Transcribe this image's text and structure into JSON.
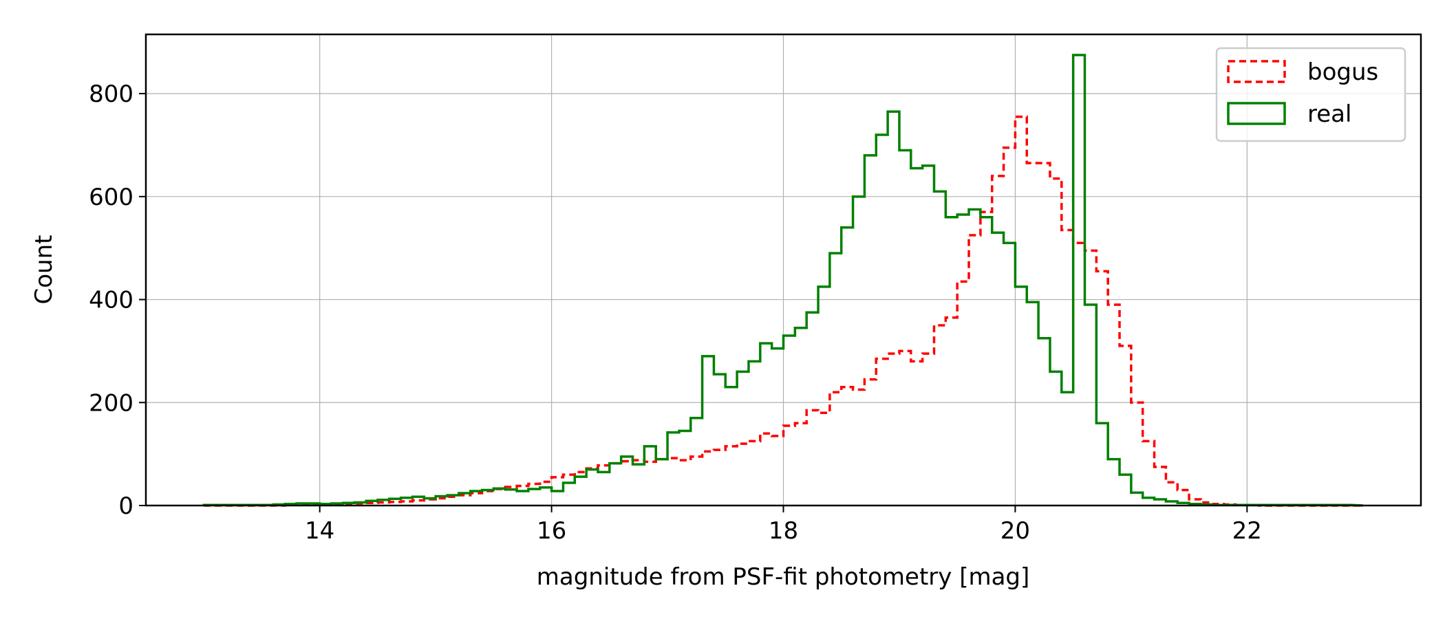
{
  "chart_data": {
    "type": "histogram-step",
    "xlabel": "magnitude from PSF-fit photometry [mag]",
    "ylabel": "Count",
    "xlim": [
      12.5,
      23.5
    ],
    "ylim": [
      0,
      915
    ],
    "x_ticks": [
      14,
      16,
      18,
      20,
      22
    ],
    "y_ticks": [
      0,
      200,
      400,
      600,
      800
    ],
    "grid": true,
    "legend_position": "top-right",
    "series": [
      {
        "name": "bogus",
        "color": "#ff0000",
        "line_style": "dashed",
        "bin_edges": [
          13.0,
          13.1,
          13.2,
          13.3,
          13.4,
          13.5,
          13.6,
          13.7,
          13.8,
          13.9,
          14.0,
          14.1,
          14.2,
          14.3,
          14.4,
          14.5,
          14.6,
          14.7,
          14.8,
          14.9,
          15.0,
          15.1,
          15.2,
          15.3,
          15.4,
          15.5,
          15.6,
          15.7,
          15.8,
          15.9,
          16.0,
          16.1,
          16.2,
          16.3,
          16.4,
          16.5,
          16.6,
          16.7,
          16.8,
          16.9,
          17.0,
          17.1,
          17.2,
          17.3,
          17.4,
          17.5,
          17.6,
          17.7,
          17.8,
          17.9,
          18.0,
          18.1,
          18.2,
          18.3,
          18.4,
          18.5,
          18.6,
          18.7,
          18.8,
          18.9,
          19.0,
          19.1,
          19.2,
          19.3,
          19.4,
          19.5,
          19.6,
          19.7,
          19.8,
          19.9,
          20.0,
          20.1,
          20.2,
          20.3,
          20.4,
          20.5,
          20.6,
          20.7,
          20.8,
          20.9,
          21.0,
          21.1,
          21.2,
          21.3,
          21.4,
          21.5,
          21.6,
          21.7,
          21.8,
          21.9,
          22.0,
          22.1,
          22.2,
          22.3,
          22.4,
          22.5,
          22.6,
          22.7,
          22.8,
          22.9
        ],
        "counts": [
          0,
          0,
          0,
          0,
          0,
          0,
          0,
          1,
          1,
          2,
          2,
          3,
          3,
          4,
          5,
          6,
          7,
          8,
          10,
          12,
          14,
          17,
          20,
          24,
          28,
          32,
          36,
          38,
          42,
          46,
          55,
          60,
          65,
          72,
          78,
          82,
          86,
          88,
          85,
          90,
          92,
          88,
          95,
          105,
          108,
          115,
          120,
          125,
          140,
          135,
          155,
          160,
          185,
          180,
          220,
          230,
          225,
          245,
          285,
          295,
          300,
          280,
          295,
          350,
          365,
          435,
          525,
          570,
          640,
          695,
          755,
          665,
          665,
          635,
          535,
          510,
          495,
          455,
          390,
          310,
          200,
          125,
          75,
          45,
          30,
          12,
          6,
          3,
          2,
          1,
          1,
          0,
          0,
          0,
          0,
          0,
          0,
          0,
          0
        ]
      },
      {
        "name": "real",
        "color": "#008000",
        "line_style": "solid",
        "bin_edges": [
          13.0,
          13.1,
          13.2,
          13.3,
          13.4,
          13.5,
          13.6,
          13.7,
          13.8,
          13.9,
          14.0,
          14.1,
          14.2,
          14.3,
          14.4,
          14.5,
          14.6,
          14.7,
          14.8,
          14.9,
          15.0,
          15.1,
          15.2,
          15.3,
          15.4,
          15.5,
          15.6,
          15.7,
          15.8,
          15.9,
          16.0,
          16.1,
          16.2,
          16.3,
          16.4,
          16.5,
          16.6,
          16.7,
          16.8,
          16.9,
          17.0,
          17.1,
          17.2,
          17.3,
          17.4,
          17.5,
          17.6,
          17.7,
          17.8,
          17.9,
          18.0,
          18.1,
          18.2,
          18.3,
          18.4,
          18.5,
          18.6,
          18.7,
          18.8,
          18.9,
          19.0,
          19.1,
          19.2,
          19.3,
          19.4,
          19.5,
          19.6,
          19.7,
          19.8,
          19.9,
          20.0,
          20.1,
          20.2,
          20.3,
          20.4,
          20.5,
          20.6,
          20.7,
          20.8,
          20.9,
          21.0,
          21.1,
          21.2,
          21.3,
          21.4,
          21.5,
          21.6,
          21.7,
          21.8,
          21.9,
          22.0,
          22.1,
          22.2,
          22.3,
          22.4,
          22.5,
          22.6,
          22.7,
          22.8,
          22.9
        ],
        "counts": [
          1,
          1,
          1,
          1,
          1,
          1,
          2,
          3,
          4,
          4,
          3,
          4,
          5,
          6,
          9,
          11,
          13,
          15,
          17,
          14,
          18,
          20,
          24,
          28,
          30,
          33,
          31,
          28,
          32,
          35,
          28,
          44,
          56,
          70,
          65,
          82,
          95,
          80,
          115,
          90,
          142,
          145,
          170,
          290,
          255,
          230,
          260,
          280,
          315,
          305,
          330,
          345,
          375,
          425,
          490,
          540,
          600,
          680,
          720,
          765,
          690,
          655,
          660,
          610,
          560,
          565,
          575,
          560,
          530,
          510,
          425,
          395,
          325,
          260,
          220,
          875,
          390,
          160,
          90,
          60,
          25,
          15,
          12,
          8,
          5,
          3,
          2,
          1,
          1,
          1,
          1,
          1,
          1,
          1,
          1,
          1,
          1,
          1,
          1
        ]
      }
    ]
  }
}
